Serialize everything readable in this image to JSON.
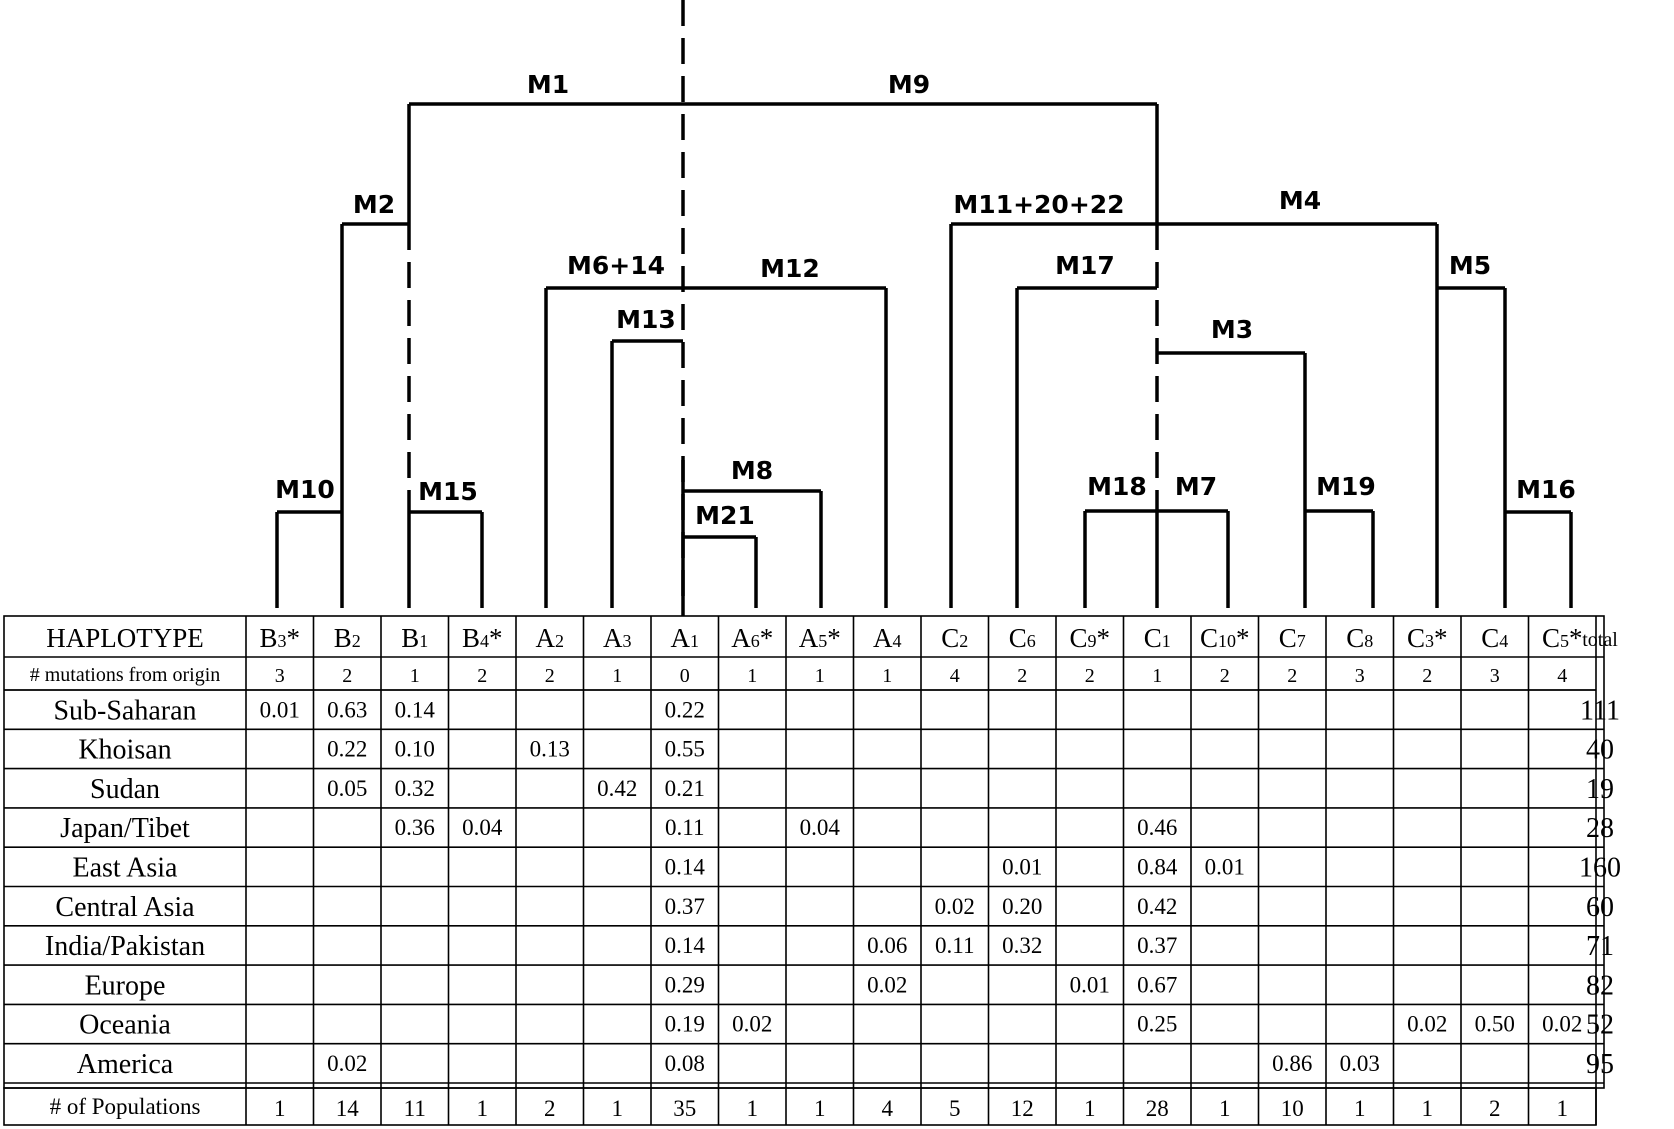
{
  "tree": {
    "labels": {
      "M1": "M1",
      "M9": "M9",
      "M2": "M2",
      "M11_20_22": "M11+20+22",
      "M4": "M4",
      "M6_14": "M6+14",
      "M12": "M12",
      "M17": "M17",
      "M5": "M5",
      "M13": "M13",
      "M3": "M3",
      "M8": "M8",
      "M21": "M21",
      "M10": "M10",
      "M15": "M15",
      "M18": "M18",
      "M7": "M7",
      "M19": "M19",
      "M16": "M16"
    }
  },
  "table": {
    "header_label": "HAPLOTYPE",
    "total_label": "total",
    "mutations_label": "# mutations from origin",
    "populations_label": "# of Populations",
    "haplotypes": [
      {
        "base": "B",
        "sub": "3",
        "suf": "*"
      },
      {
        "base": "B",
        "sub": "2",
        "suf": ""
      },
      {
        "base": "B",
        "sub": "1",
        "suf": ""
      },
      {
        "base": "B",
        "sub": "4",
        "suf": "*"
      },
      {
        "base": "A",
        "sub": "2",
        "suf": ""
      },
      {
        "base": "A",
        "sub": "3",
        "suf": ""
      },
      {
        "base": "A",
        "sub": "1",
        "suf": ""
      },
      {
        "base": "A",
        "sub": "6",
        "suf": "*"
      },
      {
        "base": "A",
        "sub": "5",
        "suf": "*"
      },
      {
        "base": "A",
        "sub": "4",
        "suf": ""
      },
      {
        "base": "C",
        "sub": "2",
        "suf": ""
      },
      {
        "base": "C",
        "sub": "6",
        "suf": ""
      },
      {
        "base": "C",
        "sub": "9",
        "suf": "*"
      },
      {
        "base": "C",
        "sub": "1",
        "suf": ""
      },
      {
        "base": "C",
        "sub": "10",
        "suf": "*"
      },
      {
        "base": "C",
        "sub": "7",
        "suf": ""
      },
      {
        "base": "C",
        "sub": "8",
        "suf": ""
      },
      {
        "base": "C",
        "sub": "3",
        "suf": "*"
      },
      {
        "base": "C",
        "sub": "4",
        "suf": ""
      },
      {
        "base": "C",
        "sub": "5",
        "suf": "*"
      }
    ],
    "mutations": [
      "3",
      "2",
      "1",
      "2",
      "2",
      "1",
      "0",
      "1",
      "1",
      "1",
      "4",
      "2",
      "2",
      "1",
      "2",
      "2",
      "3",
      "2",
      "3",
      "4"
    ],
    "rows": [
      {
        "name": "Sub-Saharan",
        "total": "111",
        "values": [
          "0.01",
          "0.63",
          "0.14",
          "",
          "",
          "",
          "0.22",
          "",
          "",
          "",
          "",
          "",
          "",
          "",
          "",
          "",
          "",
          "",
          "",
          ""
        ]
      },
      {
        "name": "Khoisan",
        "total": "40",
        "values": [
          "",
          "0.22",
          "0.10",
          "",
          "0.13",
          "",
          "0.55",
          "",
          "",
          "",
          "",
          "",
          "",
          "",
          "",
          "",
          "",
          "",
          "",
          ""
        ]
      },
      {
        "name": "Sudan",
        "total": "19",
        "values": [
          "",
          "0.05",
          "0.32",
          "",
          "",
          "0.42",
          "0.21",
          "",
          "",
          "",
          "",
          "",
          "",
          "",
          "",
          "",
          "",
          "",
          "",
          ""
        ]
      },
      {
        "name": "Japan/Tibet",
        "total": "28",
        "values": [
          "",
          "",
          "0.36",
          "0.04",
          "",
          "",
          "0.11",
          "",
          "0.04",
          "",
          "",
          "",
          "",
          "0.46",
          "",
          "",
          "",
          "",
          "",
          ""
        ]
      },
      {
        "name": "East Asia",
        "total": "160",
        "values": [
          "",
          "",
          "",
          "",
          "",
          "",
          "0.14",
          "",
          "",
          "",
          "",
          "0.01",
          "",
          "0.84",
          "0.01",
          "",
          "",
          "",
          "",
          ""
        ]
      },
      {
        "name": "Central Asia",
        "total": "60",
        "values": [
          "",
          "",
          "",
          "",
          "",
          "",
          "0.37",
          "",
          "",
          "",
          "0.02",
          "0.20",
          "",
          "0.42",
          "",
          "",
          "",
          "",
          "",
          ""
        ]
      },
      {
        "name": "India/Pakistan",
        "total": "71",
        "values": [
          "",
          "",
          "",
          "",
          "",
          "",
          "0.14",
          "",
          "",
          "0.06",
          "0.11",
          "0.32",
          "",
          "0.37",
          "",
          "",
          "",
          "",
          "",
          ""
        ]
      },
      {
        "name": "Europe",
        "total": "82",
        "values": [
          "",
          "",
          "",
          "",
          "",
          "",
          "0.29",
          "",
          "",
          "0.02",
          "",
          "",
          "0.01",
          "0.67",
          "",
          "",
          "",
          "",
          "",
          ""
        ]
      },
      {
        "name": "Oceania",
        "total": "52",
        "values": [
          "",
          "",
          "",
          "",
          "",
          "",
          "0.19",
          "0.02",
          "",
          "",
          "",
          "",
          "",
          "0.25",
          "",
          "",
          "",
          "0.02",
          "0.50",
          "0.02"
        ]
      },
      {
        "name": "America",
        "total": "95",
        "values": [
          "",
          "0.02",
          "",
          "",
          "",
          "",
          "0.08",
          "",
          "",
          "",
          "",
          "",
          "",
          "",
          "",
          "0.86",
          "0.03",
          "",
          "",
          ""
        ]
      }
    ],
    "populations": [
      "1",
      "14",
      "11",
      "1",
      "2",
      "1",
      "35",
      "1",
      "1",
      "4",
      "5",
      "12",
      "1",
      "28",
      "1",
      "10",
      "1",
      "1",
      "2",
      "1"
    ]
  }
}
